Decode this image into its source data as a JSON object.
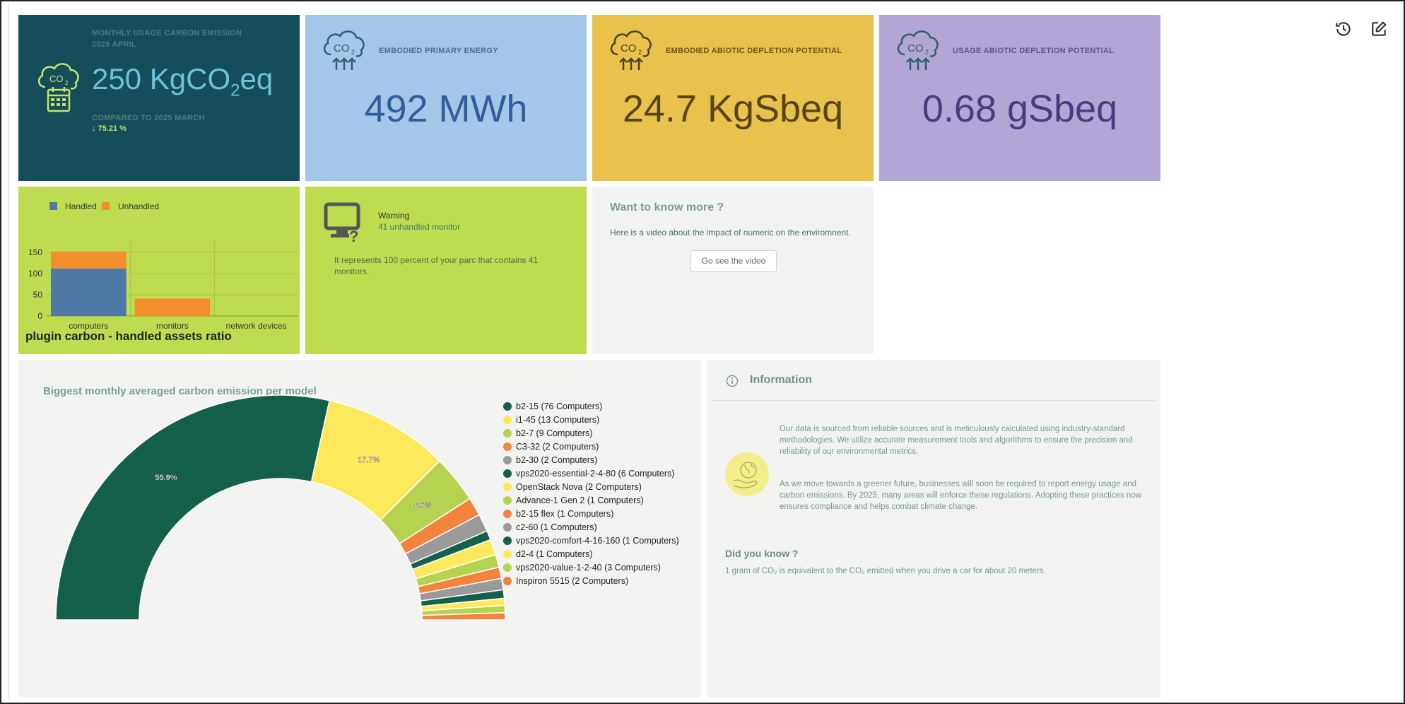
{
  "toolbar": {
    "history_icon": "history-icon",
    "edit_icon": "edit-icon"
  },
  "card1": {
    "label": "MONTHLY USAGE CARBON EMISSION",
    "period": "2025 APRIL",
    "value": "250 KgCO",
    "value_sub": "2",
    "value_suffix": "eq",
    "compare_label": "COMPARED TO 2025 MARCH",
    "compare_value": "↓ 75.21 %",
    "icon": "co2-calendar-icon",
    "colors": {
      "bg": "#144e5a",
      "accent": "#c6e36b",
      "value": "#6cc2da"
    }
  },
  "card2": {
    "label": "EMBODIED PRIMARY ENERGY",
    "value": "492 MWh",
    "icon": "co2-cloud-icon",
    "colors": {
      "bg": "#a2c7e8",
      "value": "#2f5f9b"
    }
  },
  "card3": {
    "label": "EMBODIED ABIOTIC DEPLETION POTENTIAL",
    "value": "24.7 KgSbeq",
    "icon": "co2-cloud-icon",
    "colors": {
      "bg": "#e8c24c",
      "value": "#5a4414"
    }
  },
  "card4": {
    "label": "USAGE ABIOTIC DEPLETION POTENTIAL",
    "value": "0.68 gSbeq",
    "icon": "co2-cloud-icon",
    "colors": {
      "bg": "#b3a6d6",
      "value": "#4a3a80"
    }
  },
  "assets_chart": {
    "legend": {
      "handled": "Handled",
      "unhandled": "Unhandled"
    },
    "title": "plugin carbon - handled assets ratio",
    "colors": {
      "bg": "#bedc50",
      "handled": "#4e79a7",
      "unhandled": "#f28e2b"
    },
    "chart_data": {
      "type": "bar",
      "stacked": true,
      "categories": [
        "computers",
        "monitors",
        "network devices"
      ],
      "series": [
        {
          "name": "Handled",
          "values": [
            112,
            0,
            0
          ]
        },
        {
          "name": "Unhandled",
          "values": [
            40,
            41,
            0
          ]
        }
      ],
      "ylim": [
        0,
        160
      ],
      "yticks": [
        "150",
        "100",
        "50",
        "0"
      ],
      "ytick_values": [
        150,
        100,
        50,
        0
      ],
      "grid": true,
      "legend": "top-left"
    }
  },
  "warning": {
    "title": "Warning",
    "subtitle": "41 unhandled monitor",
    "text": "It represents 100 percent of your parc that contains 41 monitors.",
    "icon": "monitor-question-icon"
  },
  "know_more": {
    "title": "Want to know more ?",
    "text": "Here is a video about the impact of numeric on the enviromnent.",
    "button": "Go see the video"
  },
  "emission_chart": {
    "title": "Biggest monthly averaged carbon emission per model",
    "chart_data": {
      "type": "pie",
      "half": true,
      "labels": [
        "b2-15 (76 Computers)",
        "i1-45 (13 Computers)",
        "b2-7 (9 Computers)",
        "C3-32 (2 Computers)",
        "b2-30 (2 Computers)",
        "vps2020-essential-2-4-80 (6 Computers)",
        "OpenStack Nova (2 Computers)",
        "Advance-1 Gen 2 (1 Computers)",
        "b2-15 flex (1 Computers)",
        "c2-60 (1 Computers)",
        "vps2020-comfort-4-16-160 (1 Computers)",
        "d2-4 (1 Computers)",
        "vps2020-value-1-2-40 (3 Computers)",
        "Inspiron 5515 (2 Computers)"
      ],
      "values": [
        55.9,
        17.7,
        6.7,
        2.6,
        2.5,
        1.3,
        2.2,
        1.8,
        1.6,
        1.6,
        1.2,
        1.0,
        1.0,
        1.0
      ],
      "data_labels": [
        "55.9%",
        "17.7%",
        "6.7%",
        "",
        "",
        "",
        "",
        "",
        "",
        "",
        "",
        "",
        "",
        ""
      ],
      "colors": [
        "#15604d",
        "#fde95b",
        "#b5d351",
        "#f2843e",
        "#9a9a9a",
        "#15604d",
        "#fde95b",
        "#b5d351",
        "#f2843e",
        "#9a9a9a",
        "#15604d",
        "#fde95b",
        "#b5d351",
        "#f2843e"
      ],
      "legend": "right"
    }
  },
  "information": {
    "title": "Information",
    "para1": "Our data is sourced from reliable sources and is meticulously calculated using industry-standard methodologies. We utilize accurate measurement tools and algorithms to ensure the precision and reliability of our environmental metrics.",
    "para2": "As we move towards a greener future, businesses will soon be required to report energy usage and carbon emissions. By 2025, many areas will enforce these regulations. Adopting these practices now ensures compliance and helps combat climate change.",
    "did_you_know_title": "Did you know ?",
    "did_you_know_text": "1 gram of CO₂ is equivalent to the CO₂ emitted when you drive a car for about 20 meters.",
    "icon": "info-icon",
    "illustration": "earth-hand-icon"
  }
}
